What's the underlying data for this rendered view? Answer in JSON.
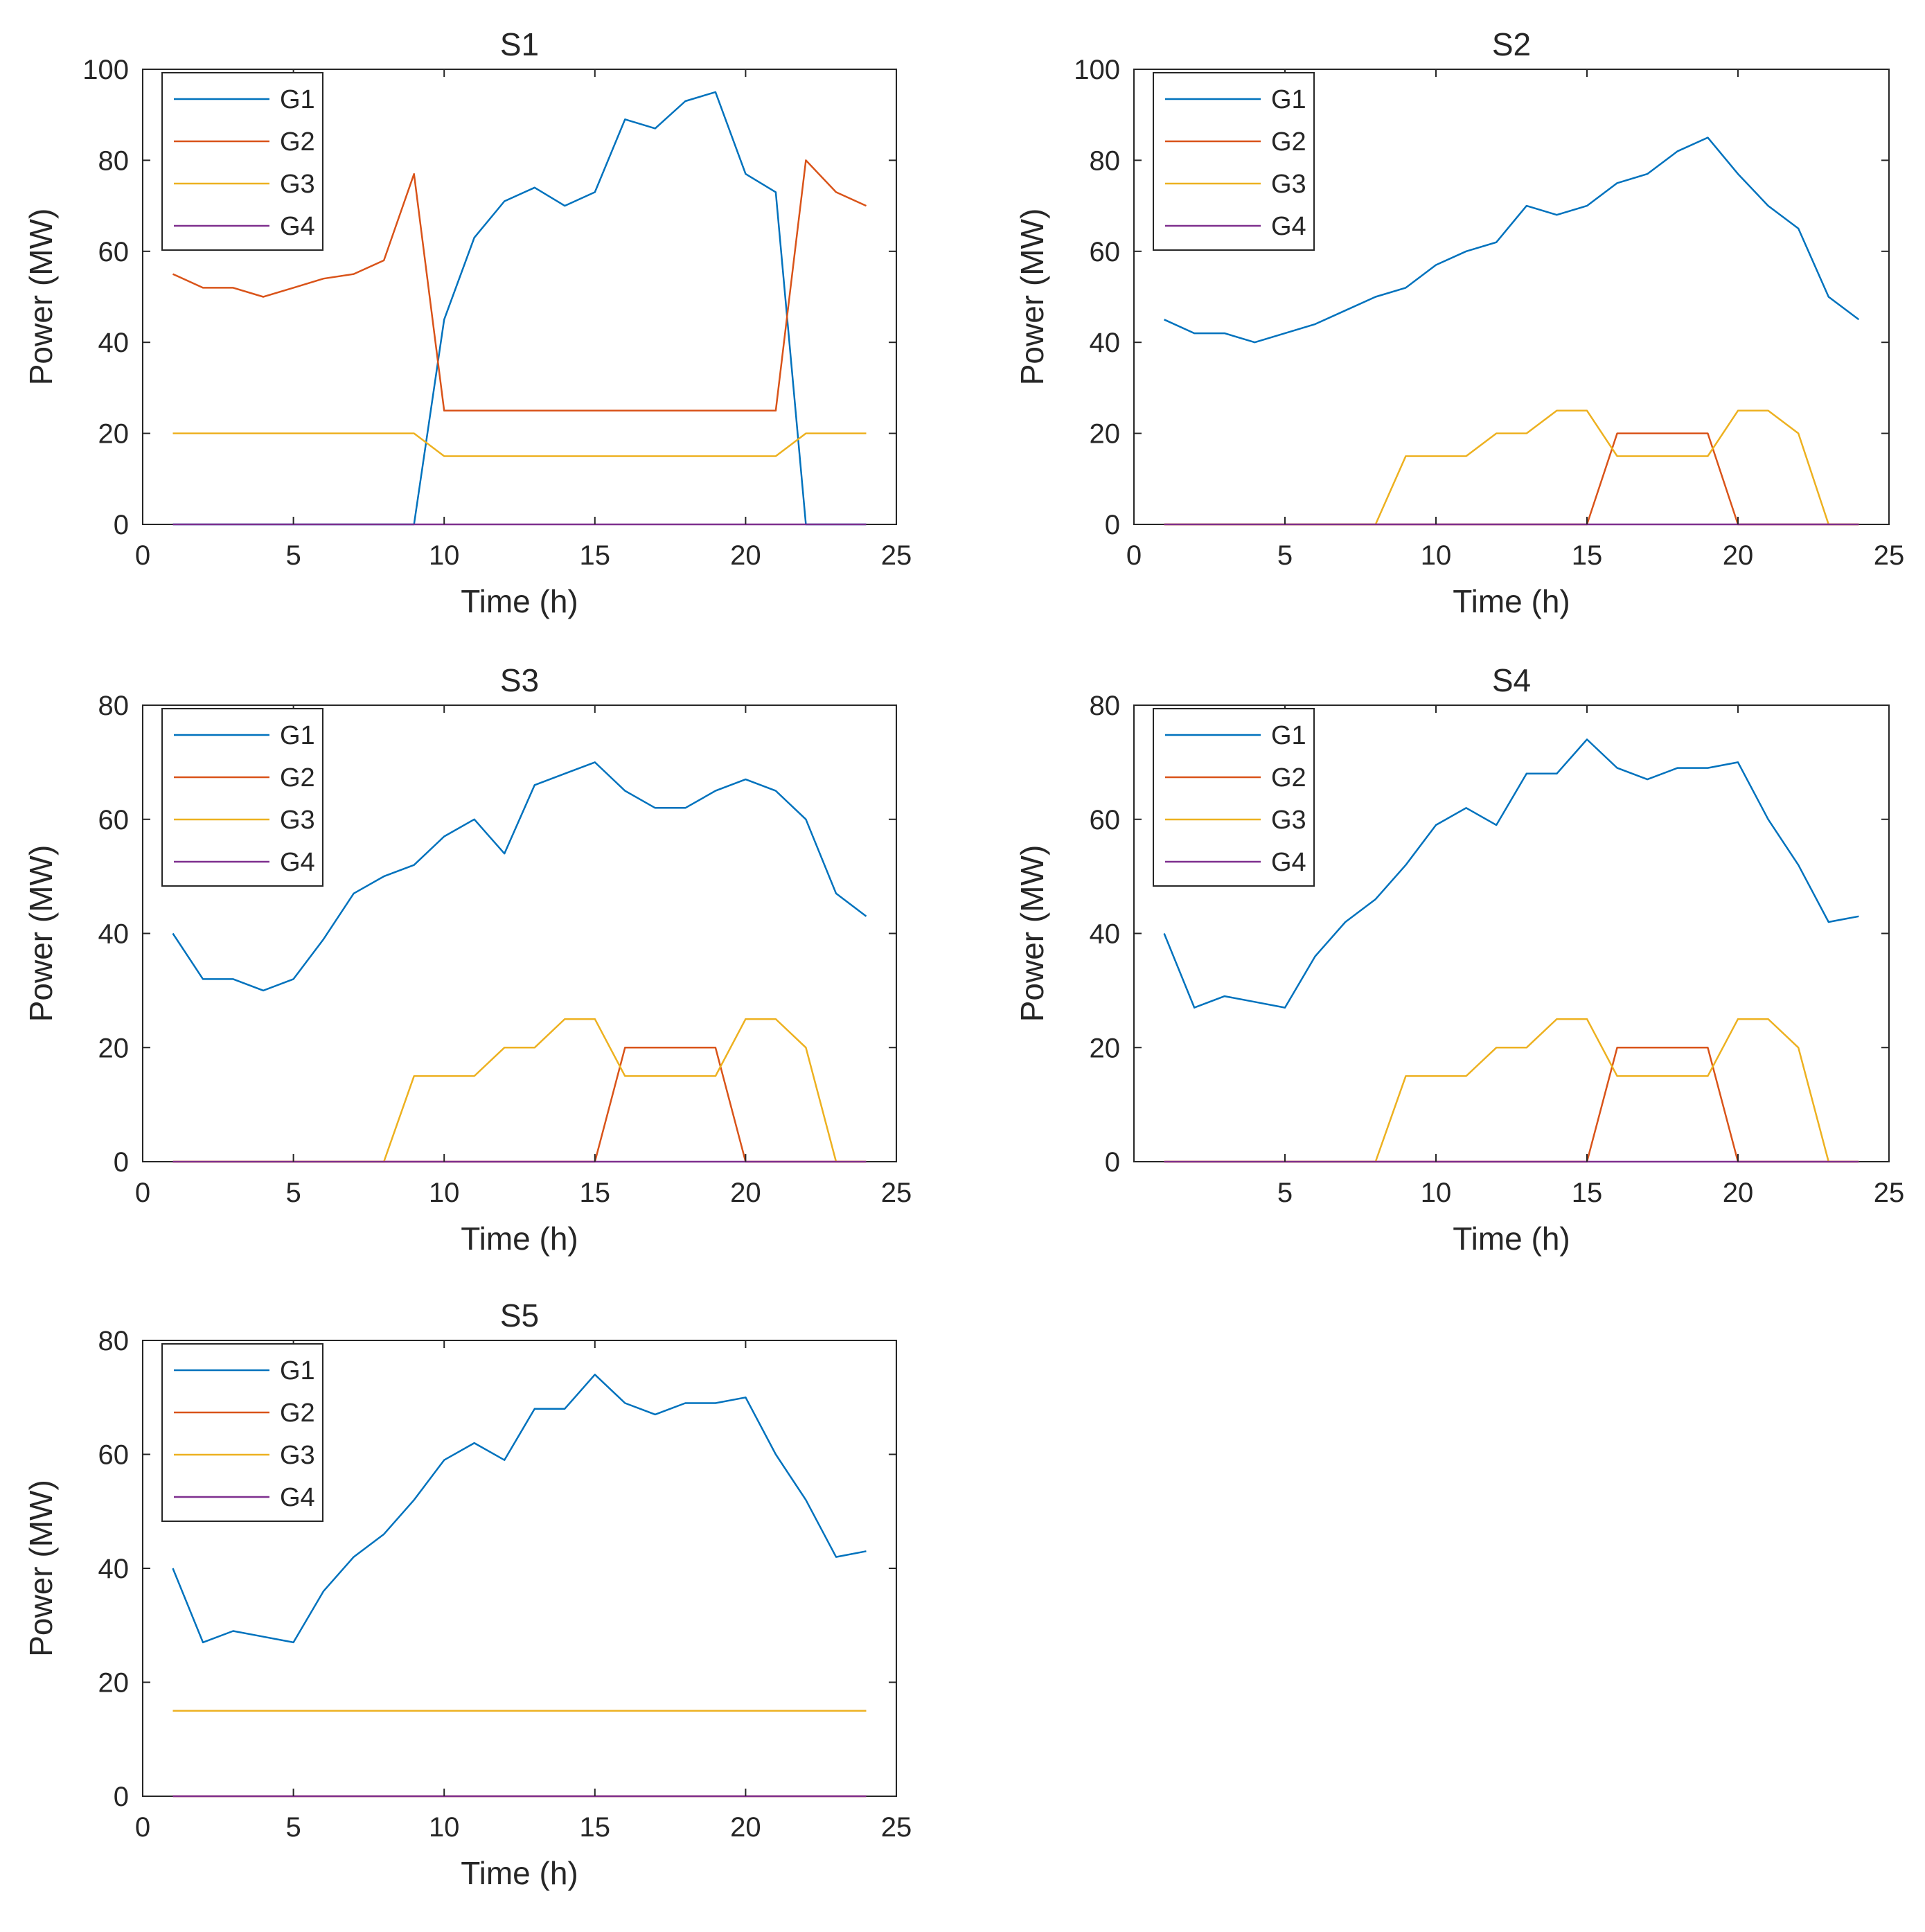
{
  "colors": {
    "G1": "#0072BD",
    "G2": "#D95319",
    "G3": "#EDB120",
    "G4": "#7E2F8E",
    "axis": "#262626",
    "background": "#ffffff"
  },
  "chart_data": [
    {
      "type": "line",
      "title": "S1",
      "xlabel": "Time (h)",
      "ylabel": "Power (MW)",
      "xlim": [
        0,
        25
      ],
      "ylim": [
        0,
        100
      ],
      "xticks": [
        0,
        5,
        10,
        15,
        20,
        25
      ],
      "yticks": [
        0,
        20,
        40,
        60,
        80,
        100
      ],
      "legend": "top-left",
      "x": [
        1,
        2,
        3,
        4,
        5,
        6,
        7,
        8,
        9,
        10,
        11,
        12,
        13,
        14,
        15,
        16,
        17,
        18,
        19,
        20,
        21,
        22,
        23,
        24
      ],
      "series": [
        {
          "name": "G1",
          "values": [
            0,
            0,
            0,
            0,
            0,
            0,
            0,
            0,
            0,
            45,
            63,
            71,
            74,
            70,
            73,
            89,
            87,
            93,
            95,
            77,
            73,
            0,
            0,
            0
          ]
        },
        {
          "name": "G2",
          "values": [
            55,
            52,
            52,
            50,
            52,
            54,
            55,
            58,
            77,
            25,
            25,
            25,
            25,
            25,
            25,
            25,
            25,
            25,
            25,
            25,
            25,
            80,
            73,
            70
          ]
        },
        {
          "name": "G3",
          "values": [
            20,
            20,
            20,
            20,
            20,
            20,
            20,
            20,
            20,
            15,
            15,
            15,
            15,
            15,
            15,
            15,
            15,
            15,
            15,
            15,
            15,
            20,
            20,
            20
          ]
        },
        {
          "name": "G4",
          "values": [
            0,
            0,
            0,
            0,
            0,
            0,
            0,
            0,
            0,
            0,
            0,
            0,
            0,
            0,
            0,
            0,
            0,
            0,
            0,
            0,
            0,
            0,
            0,
            0
          ]
        }
      ]
    },
    {
      "type": "line",
      "title": "S2",
      "xlabel": "Time (h)",
      "ylabel": "Power (MW)",
      "xlim": [
        0,
        25
      ],
      "ylim": [
        0,
        100
      ],
      "xticks": [
        0,
        5,
        10,
        15,
        20,
        25
      ],
      "yticks": [
        0,
        20,
        40,
        60,
        80,
        100
      ],
      "legend": "top-left",
      "x": [
        1,
        2,
        3,
        4,
        5,
        6,
        7,
        8,
        9,
        10,
        11,
        12,
        13,
        14,
        15,
        16,
        17,
        18,
        19,
        20,
        21,
        22,
        23,
        24
      ],
      "series": [
        {
          "name": "G1",
          "values": [
            45,
            42,
            42,
            40,
            42,
            44,
            47,
            50,
            52,
            57,
            60,
            62,
            70,
            68,
            70,
            75,
            77,
            82,
            85,
            77,
            70,
            65,
            50,
            45
          ]
        },
        {
          "name": "G2",
          "values": [
            0,
            0,
            0,
            0,
            0,
            0,
            0,
            0,
            0,
            0,
            0,
            0,
            0,
            0,
            0,
            20,
            20,
            20,
            20,
            0,
            0,
            0,
            0,
            0
          ]
        },
        {
          "name": "G3",
          "values": [
            0,
            0,
            0,
            0,
            0,
            0,
            0,
            0,
            15,
            15,
            15,
            20,
            20,
            25,
            25,
            15,
            15,
            15,
            15,
            25,
            25,
            20,
            0,
            0
          ]
        },
        {
          "name": "G4",
          "values": [
            0,
            0,
            0,
            0,
            0,
            0,
            0,
            0,
            0,
            0,
            0,
            0,
            0,
            0,
            0,
            0,
            0,
            0,
            0,
            0,
            0,
            0,
            0,
            0
          ]
        }
      ]
    },
    {
      "type": "line",
      "title": "S3",
      "xlabel": "Time (h)",
      "ylabel": "Power (MW)",
      "xlim": [
        0,
        25
      ],
      "ylim": [
        0,
        80
      ],
      "xticks": [
        0,
        5,
        10,
        15,
        20,
        25
      ],
      "yticks": [
        0,
        20,
        40,
        60,
        80
      ],
      "legend": "top-left",
      "x": [
        1,
        2,
        3,
        4,
        5,
        6,
        7,
        8,
        9,
        10,
        11,
        12,
        13,
        14,
        15,
        16,
        17,
        18,
        19,
        20,
        21,
        22,
        23,
        24
      ],
      "series": [
        {
          "name": "G1",
          "values": [
            40,
            32,
            32,
            30,
            32,
            39,
            47,
            50,
            52,
            57,
            60,
            54,
            66,
            68,
            70,
            65,
            62,
            62,
            65,
            67,
            65,
            60,
            47,
            43
          ]
        },
        {
          "name": "G2",
          "values": [
            0,
            0,
            0,
            0,
            0,
            0,
            0,
            0,
            0,
            0,
            0,
            0,
            0,
            0,
            0,
            20,
            20,
            20,
            20,
            0,
            0,
            0,
            0,
            0
          ]
        },
        {
          "name": "G3",
          "values": [
            0,
            0,
            0,
            0,
            0,
            0,
            0,
            0,
            15,
            15,
            15,
            20,
            20,
            25,
            25,
            15,
            15,
            15,
            15,
            25,
            25,
            20,
            0,
            0
          ]
        },
        {
          "name": "G4",
          "values": [
            0,
            0,
            0,
            0,
            0,
            0,
            0,
            0,
            0,
            0,
            0,
            0,
            0,
            0,
            0,
            0,
            0,
            0,
            0,
            0,
            0,
            0,
            0,
            0
          ]
        }
      ]
    },
    {
      "type": "line",
      "title": "S4",
      "xlabel": "Time (h)",
      "ylabel": "Power (MW)",
      "xlim": [
        0,
        25
      ],
      "ylim": [
        0,
        80
      ],
      "xticks": [
        5,
        10,
        15,
        20,
        25
      ],
      "yticks": [
        0,
        20,
        40,
        60,
        80
      ],
      "legend": "top-left",
      "x": [
        1,
        2,
        3,
        4,
        5,
        6,
        7,
        8,
        9,
        10,
        11,
        12,
        13,
        14,
        15,
        16,
        17,
        18,
        19,
        20,
        21,
        22,
        23,
        24
      ],
      "series": [
        {
          "name": "G1",
          "values": [
            40,
            27,
            29,
            28,
            27,
            36,
            42,
            46,
            52,
            59,
            62,
            59,
            68,
            68,
            74,
            69,
            67,
            69,
            69,
            70,
            60,
            52,
            42,
            43
          ]
        },
        {
          "name": "G2",
          "values": [
            0,
            0,
            0,
            0,
            0,
            0,
            0,
            0,
            0,
            0,
            0,
            0,
            0,
            0,
            0,
            20,
            20,
            20,
            20,
            0,
            0,
            0,
            0,
            0
          ]
        },
        {
          "name": "G3",
          "values": [
            0,
            0,
            0,
            0,
            0,
            0,
            0,
            0,
            15,
            15,
            15,
            20,
            20,
            25,
            25,
            15,
            15,
            15,
            15,
            25,
            25,
            20,
            0,
            0
          ]
        },
        {
          "name": "G4",
          "values": [
            0,
            0,
            0,
            0,
            0,
            0,
            0,
            0,
            0,
            0,
            0,
            0,
            0,
            0,
            0,
            0,
            0,
            0,
            0,
            0,
            0,
            0,
            0,
            0
          ]
        }
      ]
    },
    {
      "type": "line",
      "title": "S5",
      "xlabel": "Time (h)",
      "ylabel": "Power (MW)",
      "xlim": [
        0,
        25
      ],
      "ylim": [
        0,
        80
      ],
      "xticks": [
        0,
        5,
        10,
        15,
        20,
        25
      ],
      "yticks": [
        0,
        20,
        40,
        60,
        80
      ],
      "legend": "top-left",
      "x": [
        1,
        2,
        3,
        4,
        5,
        6,
        7,
        8,
        9,
        10,
        11,
        12,
        13,
        14,
        15,
        16,
        17,
        18,
        19,
        20,
        21,
        22,
        23,
        24
      ],
      "series": [
        {
          "name": "G1",
          "values": [
            40,
            27,
            29,
            28,
            27,
            36,
            42,
            46,
            52,
            59,
            62,
            59,
            68,
            68,
            74,
            69,
            67,
            69,
            69,
            70,
            60,
            52,
            42,
            43
          ]
        },
        {
          "name": "G2",
          "values": [
            0,
            0,
            0,
            0,
            0,
            0,
            0,
            0,
            0,
            0,
            0,
            0,
            0,
            0,
            0,
            0,
            0,
            0,
            0,
            0,
            0,
            0,
            0,
            0
          ]
        },
        {
          "name": "G3",
          "values": [
            15,
            15,
            15,
            15,
            15,
            15,
            15,
            15,
            15,
            15,
            15,
            15,
            15,
            15,
            15,
            15,
            15,
            15,
            15,
            15,
            15,
            15,
            15,
            15
          ]
        },
        {
          "name": "G4",
          "values": [
            0,
            0,
            0,
            0,
            0,
            0,
            0,
            0,
            0,
            0,
            0,
            0,
            0,
            0,
            0,
            0,
            0,
            0,
            0,
            0,
            0,
            0,
            0,
            0
          ]
        }
      ]
    }
  ]
}
